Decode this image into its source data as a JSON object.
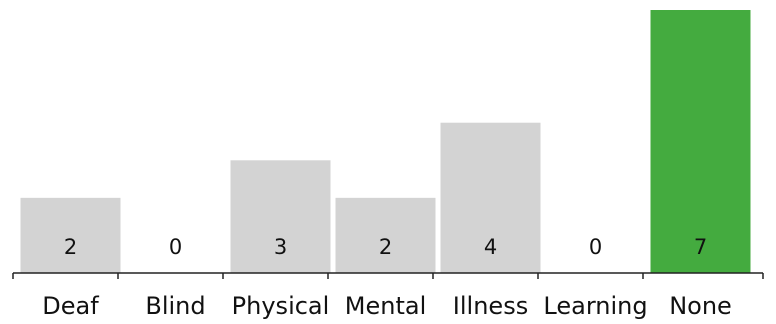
{
  "chart_data": {
    "type": "bar",
    "categories": [
      "Deaf",
      "Blind",
      "Physical",
      "Mental",
      "Illness",
      "Learning",
      "None"
    ],
    "values": [
      2,
      0,
      3,
      2,
      4,
      0,
      7
    ],
    "data_labels": [
      "2",
      "0",
      "3",
      "2",
      "4",
      "0",
      "7"
    ],
    "title": "",
    "xlabel": "",
    "ylabel": "",
    "ylim": [
      0,
      7
    ],
    "grid": false,
    "legend": "none",
    "bar_color": "#d3d3d3",
    "highlight_color": "#44ab3f",
    "highlight_category": "None",
    "axis_color": "#222222"
  }
}
